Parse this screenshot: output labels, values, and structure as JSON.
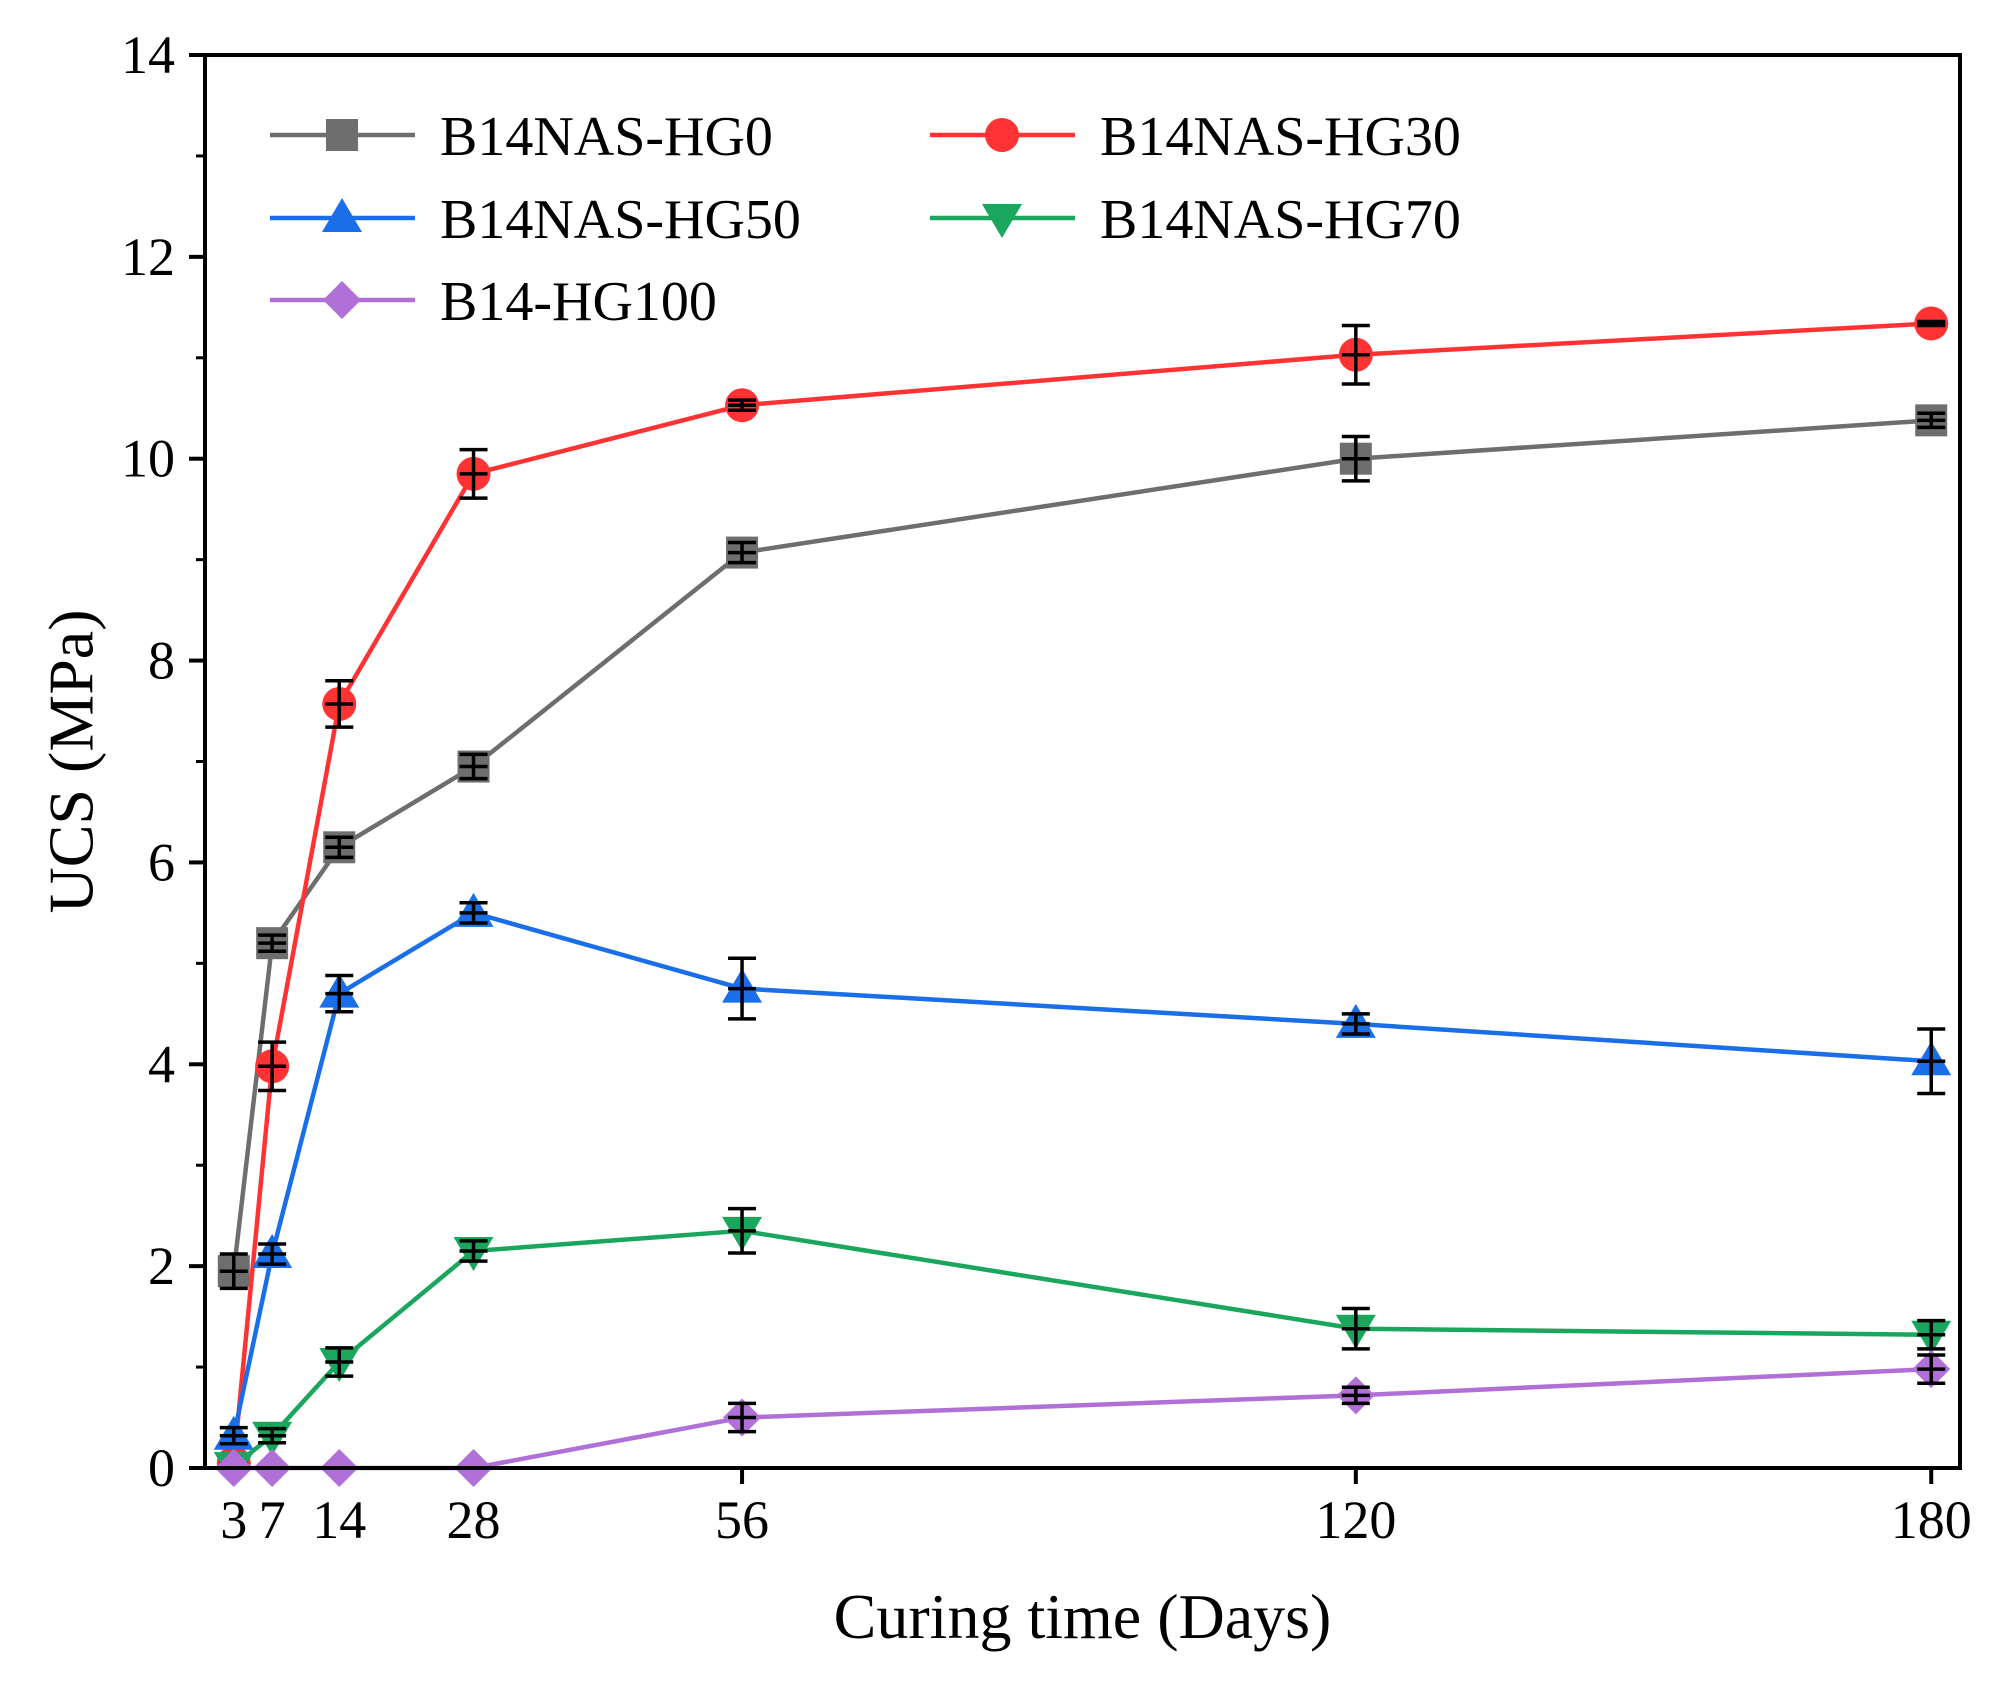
{
  "chart_data": {
    "type": "line",
    "title": "",
    "xlabel": "Curing time (Days)",
    "ylabel": "UCS (MPa)",
    "xlim": [
      0,
      183
    ],
    "ylim": [
      0,
      14
    ],
    "x_ticks": [
      3,
      7,
      14,
      28,
      56,
      120,
      180
    ],
    "y_ticks": [
      0,
      2,
      4,
      6,
      8,
      10,
      12,
      14
    ],
    "x": [
      3,
      7,
      14,
      28,
      56,
      120,
      180
    ],
    "legend_position": "top-left",
    "series": [
      {
        "name": "B14NAS-HG0",
        "color": "#6e6e6e",
        "marker": "square",
        "values": [
          1.95,
          5.2,
          6.15,
          6.95,
          9.07,
          10.0,
          10.38
        ],
        "errors": [
          0.17,
          0.08,
          0.1,
          0.12,
          0.1,
          0.22,
          0.07
        ]
      },
      {
        "name": "B14NAS-HG30",
        "color": "#ff3333",
        "marker": "circle",
        "values": [
          0.05,
          3.98,
          7.57,
          9.85,
          10.53,
          11.03,
          11.34
        ],
        "errors": [
          0.05,
          0.24,
          0.23,
          0.24,
          0.05,
          0.29,
          0.02
        ]
      },
      {
        "name": "B14NAS-HG50",
        "color": "#1a6ee8",
        "marker": "triangle-up",
        "values": [
          0.32,
          2.12,
          4.7,
          5.5,
          4.75,
          4.4,
          4.03
        ],
        "errors": [
          0.08,
          0.1,
          0.18,
          0.1,
          0.3,
          0.1,
          0.32
        ]
      },
      {
        "name": "B14NAS-HG70",
        "color": "#1aa65c",
        "marker": "triangle-down",
        "values": [
          0.02,
          0.32,
          1.05,
          2.15,
          2.35,
          1.38,
          1.32
        ],
        "errors": [
          0.02,
          0.07,
          0.14,
          0.1,
          0.22,
          0.2,
          0.14
        ]
      },
      {
        "name": "B14-HG100",
        "color": "#b070d8",
        "marker": "diamond",
        "values": [
          0.0,
          0.0,
          0.0,
          0.0,
          0.5,
          0.72,
          0.98
        ],
        "errors": [
          0.0,
          0.0,
          0.0,
          0.0,
          0.14,
          0.08,
          0.14
        ]
      }
    ]
  }
}
